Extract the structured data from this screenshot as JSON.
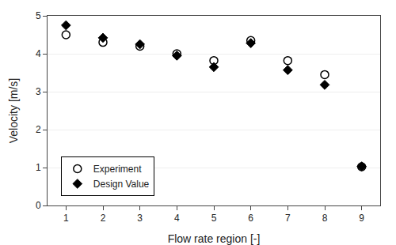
{
  "chart_data": {
    "type": "scatter",
    "xlabel": "Flow rate region [-]",
    "ylabel": "Velocity [m/s]",
    "x": [
      1,
      2,
      3,
      4,
      5,
      6,
      7,
      8,
      9
    ],
    "series": [
      {
        "name": "Experiment",
        "color": "#000000",
        "marker": "open-circle",
        "values": [
          4.5,
          4.3,
          4.2,
          4.0,
          3.82,
          4.35,
          3.82,
          3.45,
          1.02
        ]
      },
      {
        "name": "Design Value",
        "color": "#000000",
        "marker": "diamond",
        "values": [
          4.75,
          4.42,
          4.25,
          3.95,
          3.65,
          4.28,
          3.57,
          3.18,
          1.03
        ]
      }
    ],
    "xlim": [
      0.5,
      9.5
    ],
    "ylim": [
      0,
      5
    ],
    "xticks": [
      1,
      2,
      3,
      4,
      5,
      6,
      7,
      8,
      9
    ],
    "yticks": [
      0,
      1,
      2,
      3,
      4,
      5
    ],
    "grid": "y",
    "legend": "lower left"
  }
}
